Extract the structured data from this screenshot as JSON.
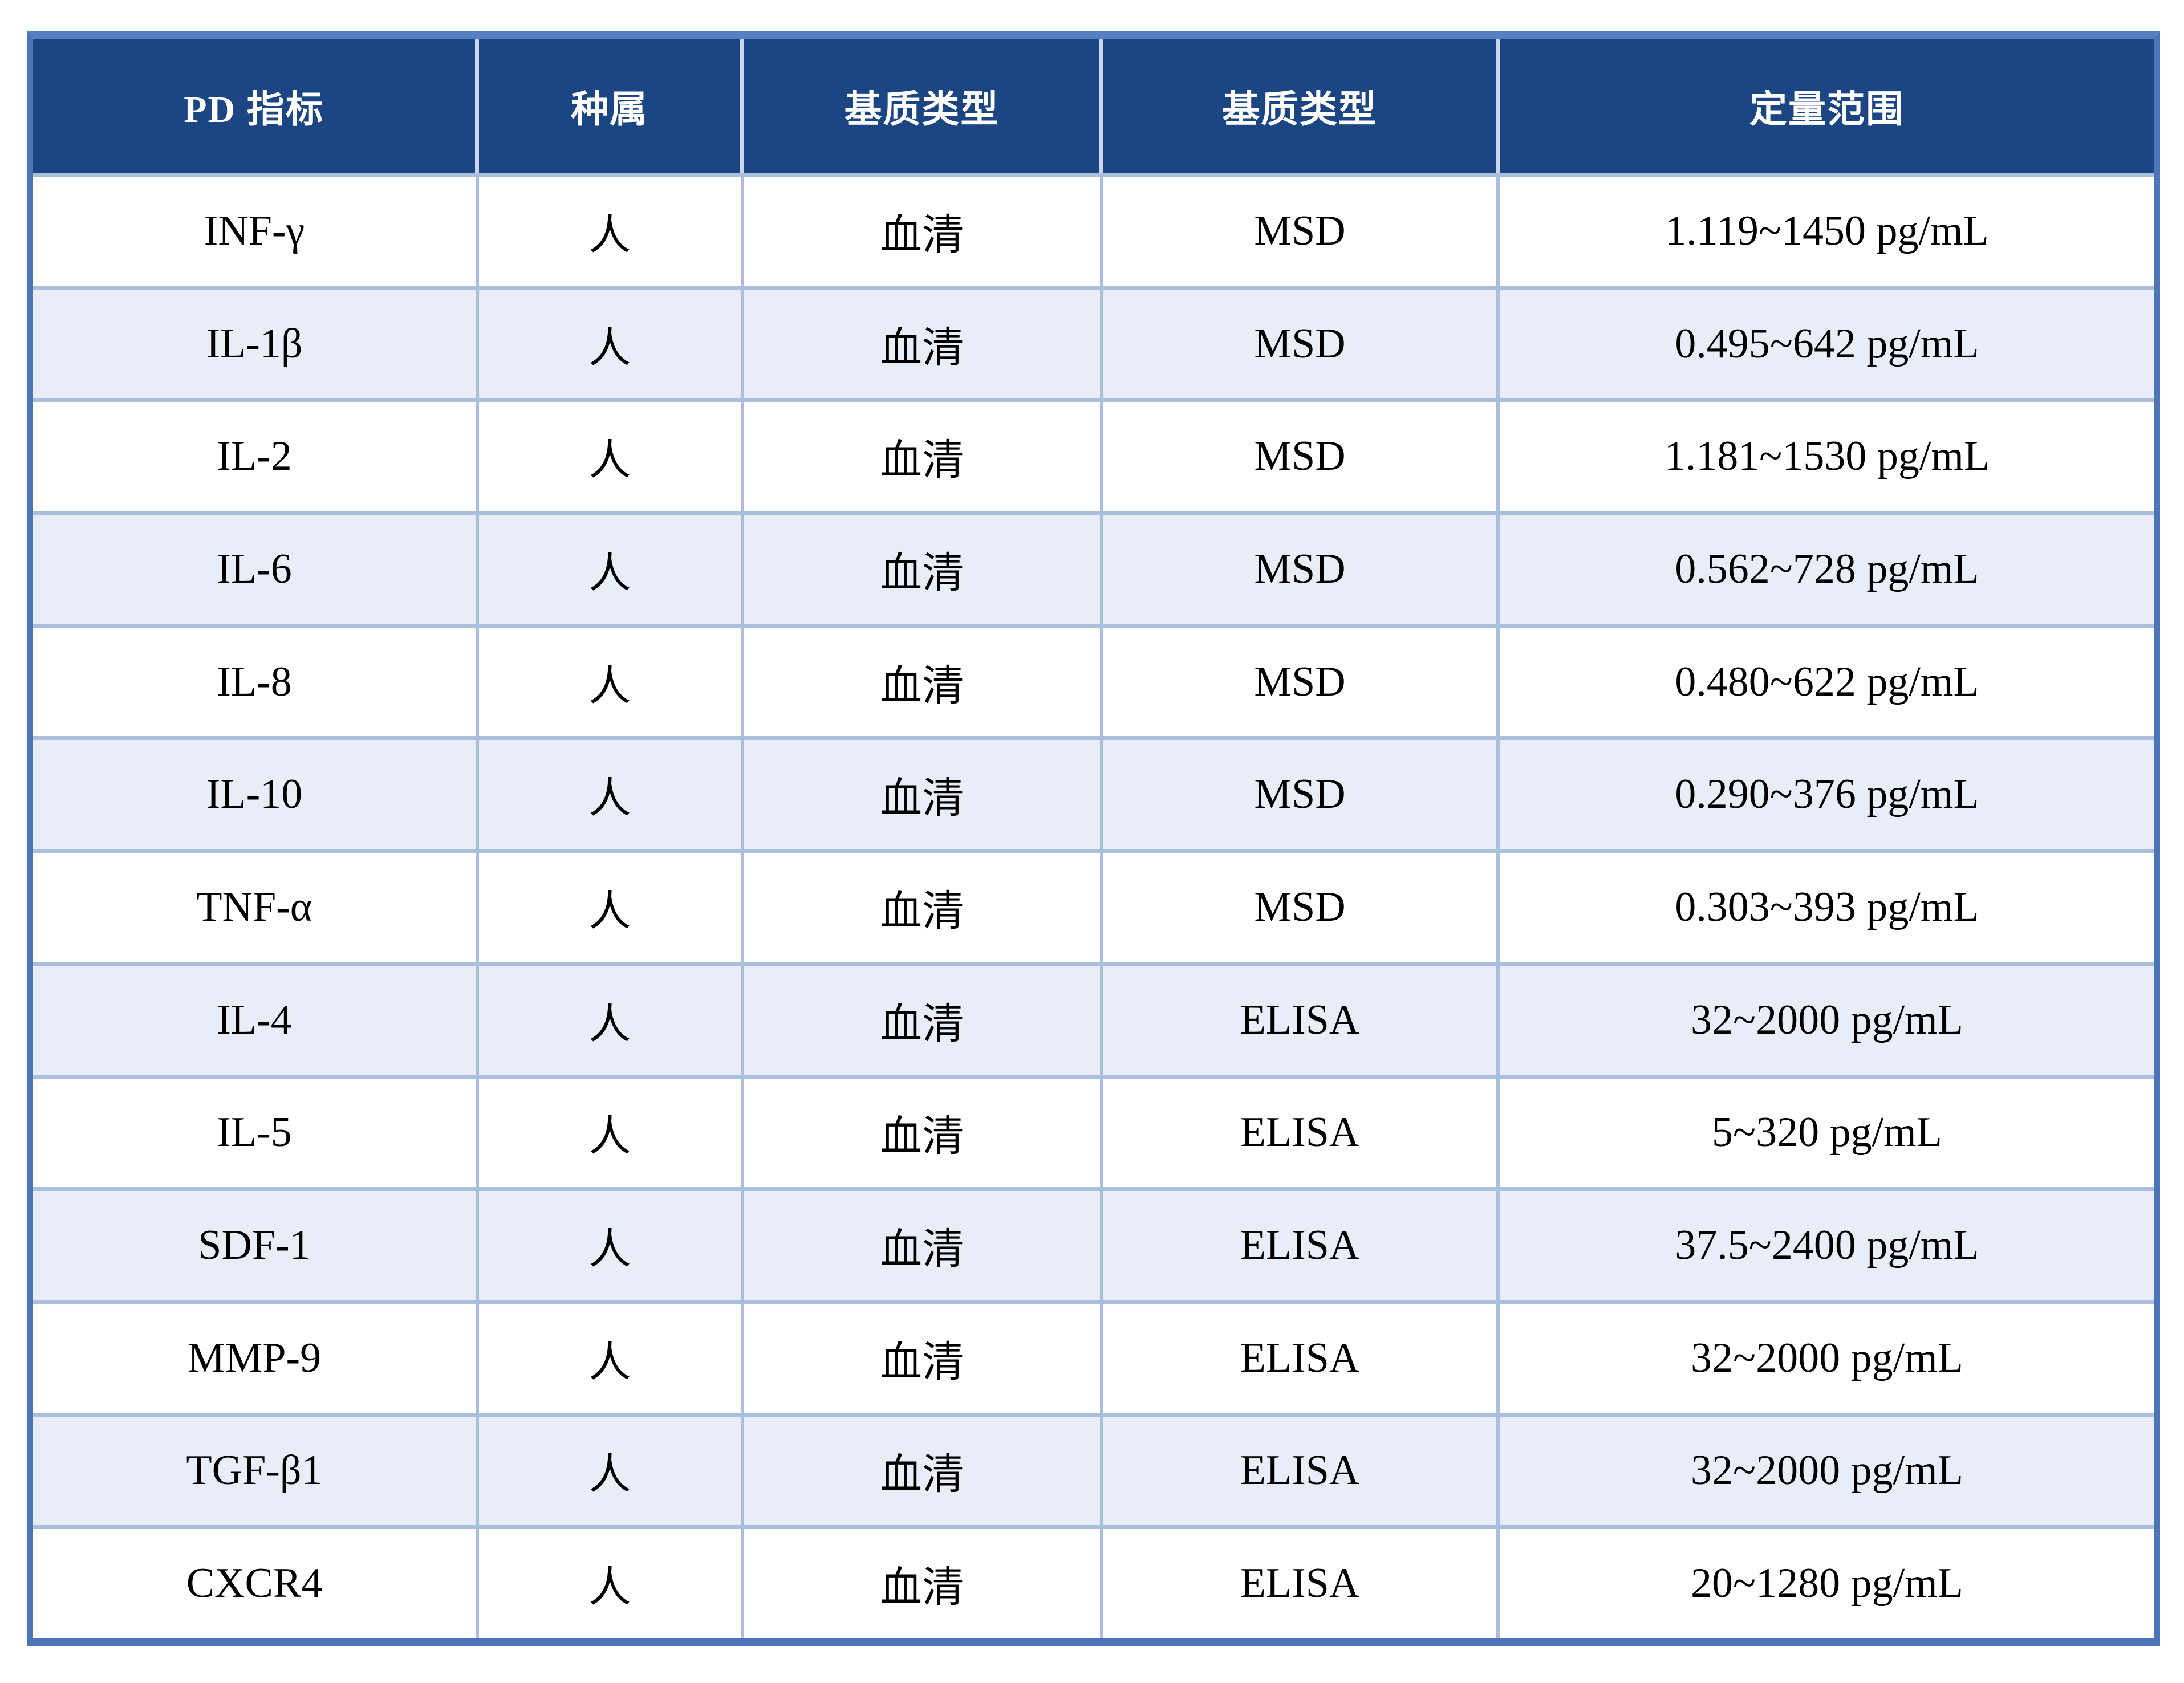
{
  "table": {
    "headers": [
      "PD 指标",
      "种属",
      "基质类型",
      "基质类型",
      "定量范围"
    ],
    "rows": [
      {
        "cells": [
          "INF-γ",
          "人",
          "血清",
          "MSD",
          "1.119~1450 pg/mL"
        ]
      },
      {
        "cells": [
          "IL-1β",
          "人",
          "血清",
          "MSD",
          "0.495~642 pg/mL"
        ]
      },
      {
        "cells": [
          "IL-2",
          "人",
          "血清",
          "MSD",
          "1.181~1530 pg/mL"
        ]
      },
      {
        "cells": [
          "IL-6",
          "人",
          "血清",
          "MSD",
          "0.562~728 pg/mL"
        ]
      },
      {
        "cells": [
          "IL-8",
          "人",
          "血清",
          "MSD",
          "0.480~622 pg/mL"
        ]
      },
      {
        "cells": [
          "IL-10",
          "人",
          "血清",
          "MSD",
          "0.290~376 pg/mL"
        ]
      },
      {
        "cells": [
          "TNF-α",
          "人",
          "血清",
          "MSD",
          "0.303~393 pg/mL"
        ]
      },
      {
        "cells": [
          "IL-4",
          "人",
          "血清",
          "ELISA",
          "32~2000 pg/mL"
        ]
      },
      {
        "cells": [
          "IL-5",
          "人",
          "血清",
          "ELISA",
          "5~320 pg/mL"
        ]
      },
      {
        "cells": [
          "SDF-1",
          "人",
          "血清",
          "ELISA",
          "37.5~2400 pg/mL"
        ]
      },
      {
        "cells": [
          "MMP-9",
          "人",
          "血清",
          "ELISA",
          "32~2000 pg/mL"
        ]
      },
      {
        "cells": [
          "TGF-β1",
          "人",
          "血清",
          "ELISA",
          "32~2000 pg/mL"
        ]
      },
      {
        "cells": [
          "CXCR4",
          "人",
          "血清",
          "ELISA",
          "20~1280 pg/mL"
        ]
      }
    ]
  },
  "colors": {
    "header_bg": "#1C4584",
    "header_text": "#FFFFFF",
    "row_bg": "#FFFFFF",
    "row_alt_bg": "#E9EDF7",
    "grid_line": "#ABBEDC",
    "header_grid_line": "#CBD6EB",
    "outer_border": "#4C74B9",
    "outer_border_top": "#5580C6",
    "body_text": "#000000"
  }
}
